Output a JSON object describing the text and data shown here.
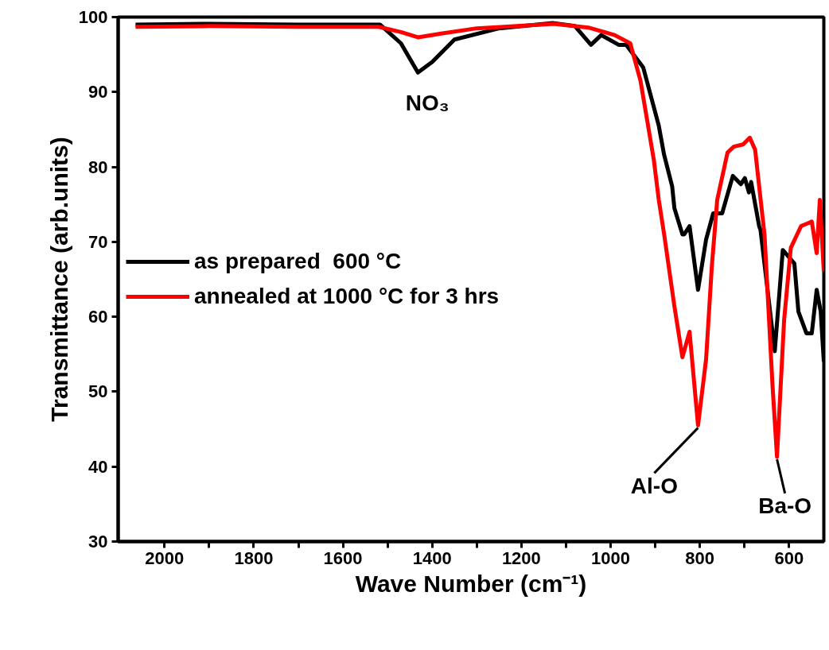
{
  "chart_data": {
    "type": "line",
    "xlabel": "Wave Number (cm⁻¹)",
    "ylabel": "Transmittance (arb.units)",
    "xlim": [
      2104,
      522
    ],
    "ylim": [
      30,
      100
    ],
    "xticks": [
      2000,
      {
        "value": 1900,
        "label": null
      },
      1800,
      {
        "value": 1700,
        "label": null
      },
      1600,
      {
        "value": 1500,
        "label": null
      },
      1400,
      {
        "value": 1300,
        "label": null
      },
      1200,
      {
        "value": 1100,
        "label": null
      },
      1000,
      {
        "value": 900,
        "label": null
      },
      800,
      {
        "value": 700,
        "label": null
      },
      600
    ],
    "yticks": [
      30,
      40,
      50,
      60,
      70,
      80,
      90,
      100
    ],
    "grid": false,
    "legend": "left",
    "line_style": "solid",
    "marker": "none",
    "series": [
      {
        "name": "as prepared  600 °C",
        "color": "#000000",
        "x": [
          2065,
          1900,
          1700,
          1517,
          1470,
          1432,
          1400,
          1350,
          1250,
          1130,
          1080,
          1044,
          1021,
          982,
          965,
          927,
          892,
          880,
          862,
          857,
          839,
          835,
          823,
          804,
          786,
          770,
          750,
          726,
          708,
          699,
          690,
          685,
          667,
          664,
          632,
          614,
          588,
          579,
          561,
          549,
          538,
          529,
          522
        ],
        "values": [
          99.0,
          99.1,
          99.0,
          99.0,
          96.5,
          92.6,
          94.0,
          97.0,
          98.5,
          99.2,
          98.8,
          96.3,
          97.6,
          96.3,
          96.3,
          93.3,
          85.5,
          81.6,
          77.4,
          74.5,
          71.0,
          71.0,
          72.1,
          63.6,
          70.3,
          73.8,
          73.8,
          78.8,
          77.7,
          78.5,
          76.6,
          78.0,
          72.1,
          71.6,
          55.4,
          68.9,
          67.1,
          60.7,
          57.8,
          57.8,
          63.6,
          60.7,
          54.0
        ]
      },
      {
        "name": "annealed at 1000 °C for 3 hrs",
        "color": "#ff0000",
        "x": [
          2065,
          1900,
          1700,
          1520,
          1470,
          1432,
          1380,
          1300,
          1127,
          1050,
          991,
          956,
          933,
          903,
          892,
          880,
          857,
          839,
          823,
          804,
          786,
          773,
          761,
          738,
          724,
          703,
          688,
          676,
          667,
          655,
          637,
          627,
          611,
          596,
          573,
          549,
          538,
          531,
          522
        ],
        "values": [
          98.7,
          98.8,
          98.7,
          98.7,
          98.0,
          97.3,
          97.8,
          98.5,
          99.1,
          98.6,
          97.6,
          96.5,
          91.5,
          80.9,
          75.6,
          71.0,
          61.4,
          54.6,
          58.0,
          45.5,
          54.3,
          66.8,
          75.6,
          81.9,
          82.7,
          83.0,
          83.9,
          82.3,
          77.4,
          71.0,
          50.8,
          41.3,
          59.6,
          69.2,
          72.1,
          72.7,
          68.5,
          75.6,
          66.0
        ]
      }
    ],
    "annotations": [
      {
        "text": "NO₃",
        "x": 1432,
        "y": 92.6
      },
      {
        "text": "Al-O",
        "x": 804,
        "y": 45.5
      },
      {
        "text": "Ba-O",
        "x": 627,
        "y": 41.3
      }
    ]
  }
}
